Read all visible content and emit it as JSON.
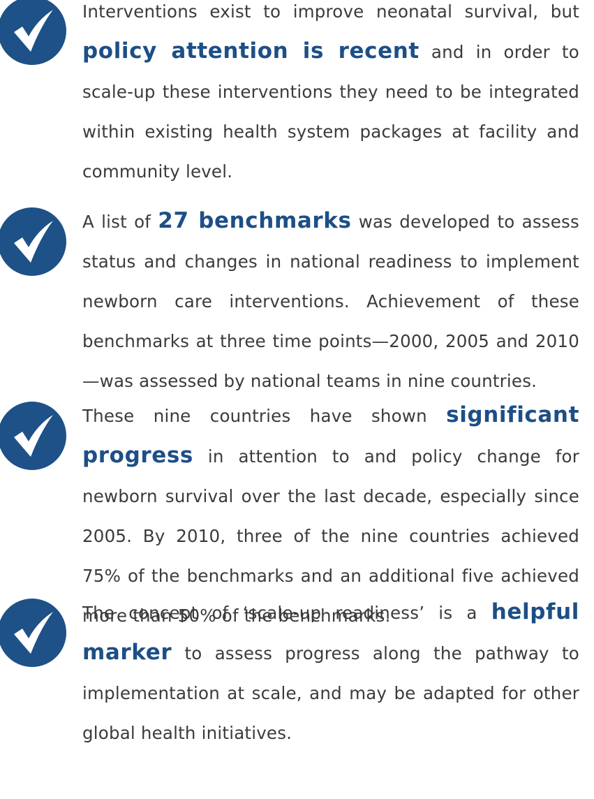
{
  "items": [
    {
      "segments": [
        {
          "text": "Interventions exist to improve neonatal survival, but ",
          "bold": false
        },
        {
          "text": "policy attention is recent",
          "bold": true
        },
        {
          "text": " and in order to scale-up these interventions they need to be integrated within existing health system packages at facility and community level.",
          "bold": false
        }
      ]
    },
    {
      "segments": [
        {
          "text": "A list of ",
          "bold": false
        },
        {
          "text": "27 benchmarks",
          "bold": true
        },
        {
          "text": " was developed to assess status and changes in national readiness to implement newborn care interventions. Achievement of these bench­marks at three time points—2000, 2005 and 2010—was assessed by national teams in nine countries.",
          "bold": false
        }
      ]
    },
    {
      "segments": [
        {
          "text": "These nine countries have shown ",
          "bold": false
        },
        {
          "text": "significant progress",
          "bold": true
        },
        {
          "text": " in attention to and policy change for newborn survival over the last decade, especially since 2005. By 2010, three of the nine countries achieved 75% of the benchmarks and an additional five achieved more than 50% of the benchmarks.",
          "bold": false
        }
      ]
    },
    {
      "segments": [
        {
          "text": "The concept of ‘scale-up readiness’ is a ",
          "bold": false
        },
        {
          "text": "helpful marker",
          "bold": true
        },
        {
          "text": " to assess progress along the pathway to implementation at scale, and may be adapted for other global health initiatives.",
          "bold": false
        }
      ]
    }
  ]
}
